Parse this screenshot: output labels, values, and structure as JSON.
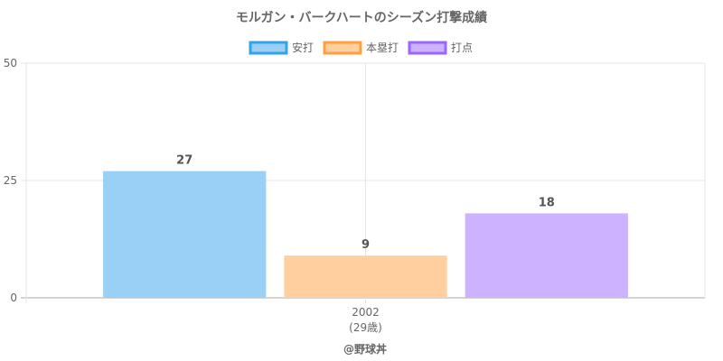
{
  "chart_data": {
    "type": "bar",
    "title": "モルガン・バークハートのシーズン打撃成績",
    "categories": [
      "2002"
    ],
    "category_sublabels": [
      "(29歳)"
    ],
    "series": [
      {
        "name": "安打",
        "values": [
          27
        ],
        "color": "#9ad0f5",
        "border": "#36a2eb"
      },
      {
        "name": "本塁打",
        "values": [
          9
        ],
        "color": "#ffcf9f",
        "border": "#ff9f40"
      },
      {
        "name": "打点",
        "values": [
          18
        ],
        "color": "#ccb2ff",
        "border": "#9966ff"
      }
    ],
    "ylim": [
      0,
      50
    ],
    "yticks": [
      0,
      25,
      50
    ],
    "grid": true,
    "legend_position": "top"
  },
  "credit": "@野球丼"
}
